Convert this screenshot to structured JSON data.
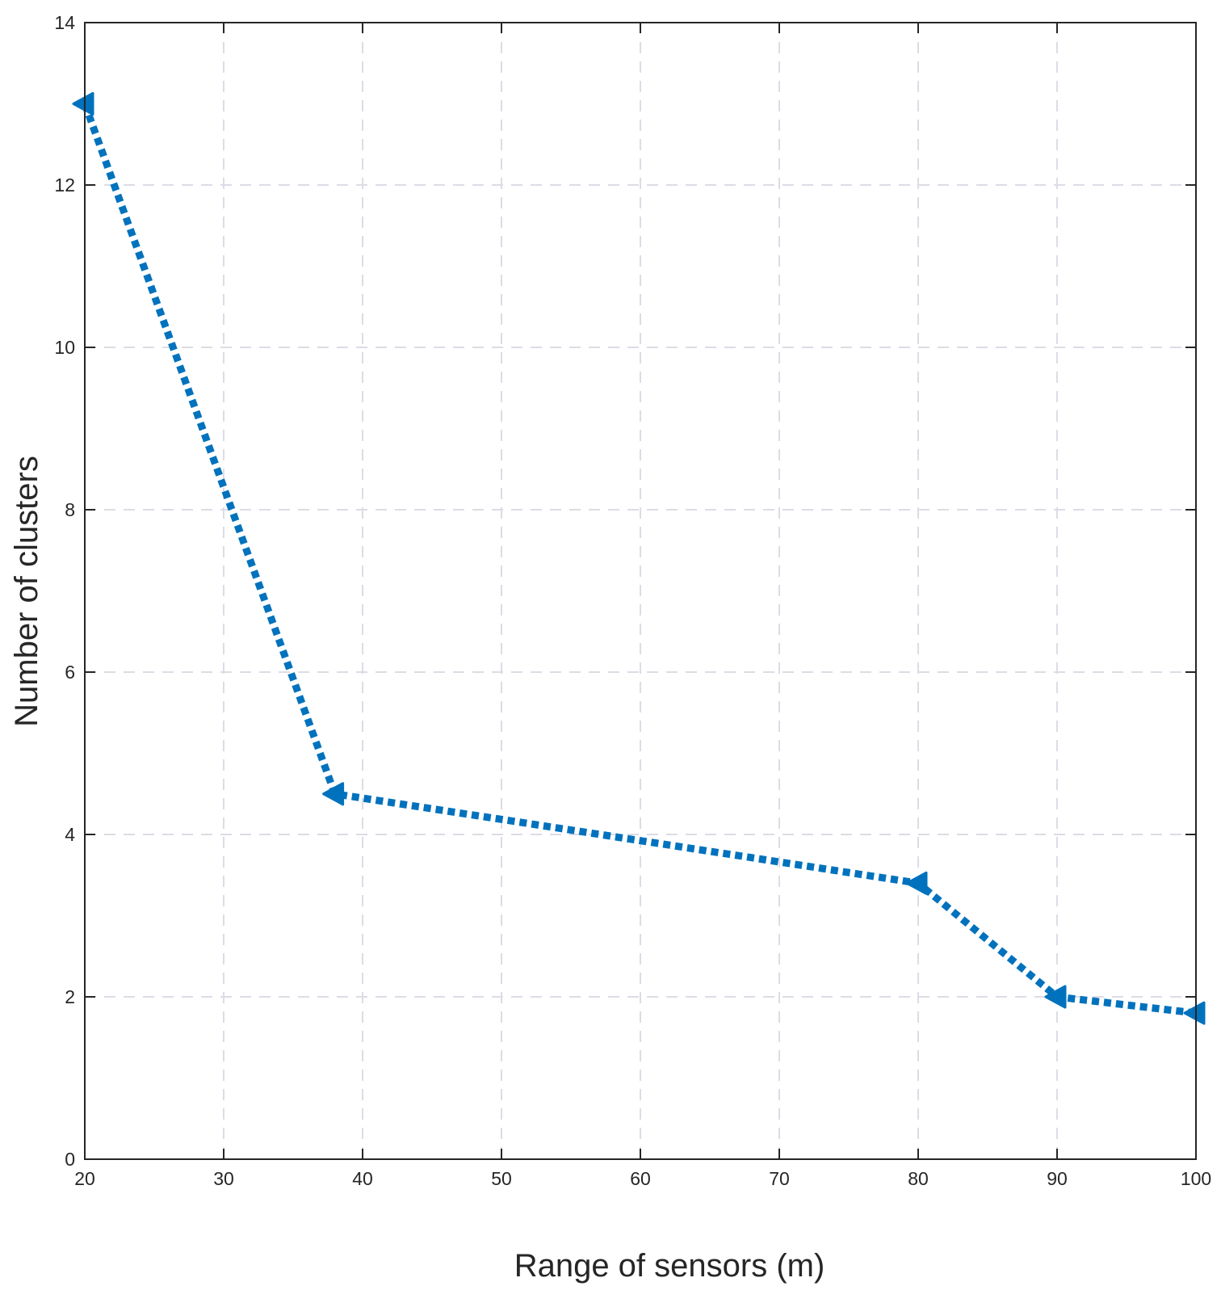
{
  "chart_data": {
    "type": "line",
    "title": "",
    "xlabel": "Range of sensors",
    "xlabel_unit": "(m)",
    "ylabel": "Number of clusters",
    "xlim": [
      20,
      100
    ],
    "ylim": [
      0,
      14
    ],
    "xticks": [
      20,
      30,
      40,
      50,
      60,
      70,
      80,
      90,
      100
    ],
    "yticks": [
      0,
      2,
      4,
      6,
      8,
      10,
      12,
      14
    ],
    "grid": true,
    "legend": "none",
    "series": [
      {
        "line_style": "dotted",
        "marker": "left-triangle",
        "color": "#0072BD",
        "x": [
          20,
          38,
          80,
          90,
          100
        ],
        "y": [
          13,
          4.5,
          3.4,
          2.0,
          1.8
        ]
      }
    ]
  }
}
